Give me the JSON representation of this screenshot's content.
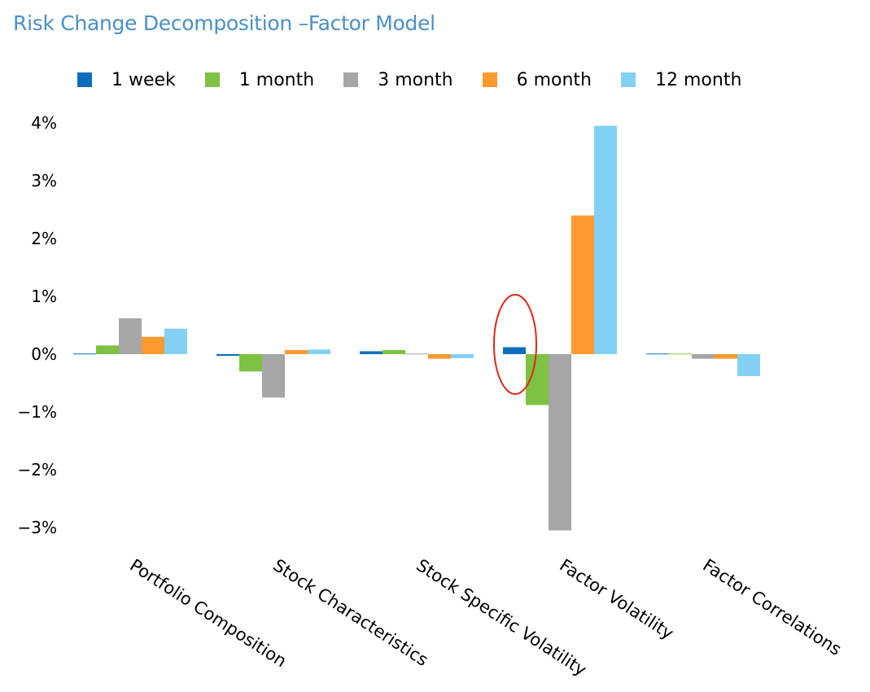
{
  "chart_data": {
    "type": "bar",
    "title": "Risk Change Decomposition –Factor Model",
    "categories": [
      "Portfolio Composition",
      "Stock Characteristics",
      "Stock Specific Volatility",
      "Factor Volatility",
      "Factor  Correlations"
    ],
    "series": [
      {
        "name": "1 week",
        "color": "#0A6EBD",
        "values": [
          0.01,
          -0.03,
          0.05,
          0.12,
          0.01
        ]
      },
      {
        "name": "1 month",
        "color": "#7DC242",
        "values": [
          0.15,
          -0.3,
          0.07,
          -0.88,
          0.01
        ]
      },
      {
        "name": "3 month",
        "color": "#A6A6A6",
        "values": [
          0.62,
          -0.75,
          0.01,
          -3.05,
          -0.08
        ]
      },
      {
        "name": "6 month",
        "color": "#FF9A2E",
        "values": [
          0.3,
          0.07,
          -0.08,
          2.4,
          -0.08
        ]
      },
      {
        "name": "12 month",
        "color": "#82D1F5",
        "values": [
          0.44,
          0.08,
          -0.07,
          3.95,
          -0.38
        ]
      }
    ],
    "y_ticks": [
      "4%",
      "3%",
      "2%",
      "1%",
      "0%",
      "−1%",
      "−2%",
      "−3%"
    ],
    "y_tick_values": [
      4,
      3,
      2,
      1,
      0,
      -1,
      -2,
      -3
    ],
    "ylim": [
      -3.3,
      4.3
    ],
    "grid": false,
    "legend_position": "top",
    "annotation": {
      "type": "ellipse",
      "color": "#E0261C",
      "target": "Factor Volatility / 1 week"
    }
  }
}
